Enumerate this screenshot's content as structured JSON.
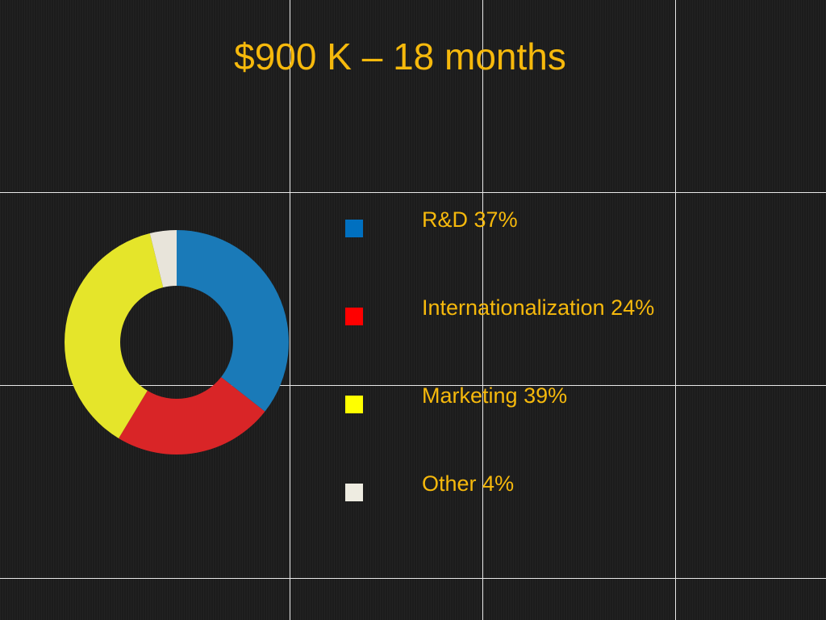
{
  "chart_data": {
    "type": "donut",
    "title": "$900 K – 18 months",
    "categories": [
      "R&D",
      "Internationalization",
      "Marketing",
      "Other"
    ],
    "values": [
      37,
      24,
      39,
      4
    ],
    "value_labels": [
      "37%",
      "24%",
      "39%",
      "4%"
    ],
    "colors": [
      "#1a7ab8",
      "#d92527",
      "#e5e52a",
      "#e8e4da"
    ],
    "legend_colors": [
      "#0070c0",
      "#ff0000",
      "#ffff00",
      "#eeece1"
    ],
    "legend": "right"
  }
}
